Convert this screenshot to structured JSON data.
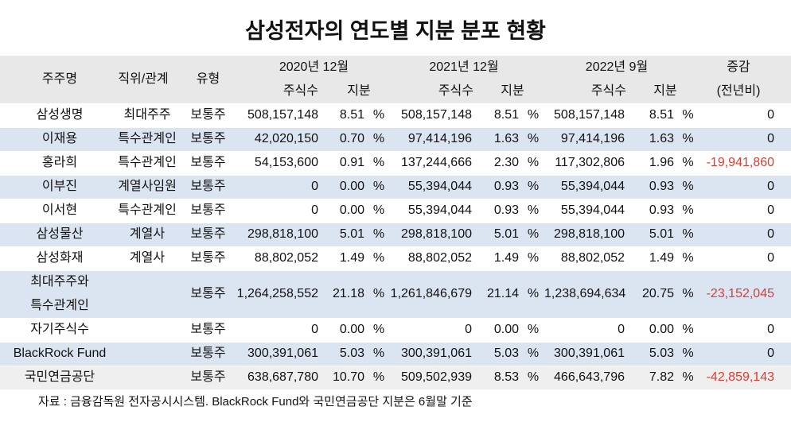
{
  "chart_data": {
    "type": "table",
    "title": "삼성전자의 연도별 지분 분포 현황",
    "columns": {
      "shareholder": "주주명",
      "relation": "직위/관계",
      "share_type": "유형",
      "periods": [
        {
          "label": "2020년 12월",
          "shares_label": "주식수",
          "stake_label": "지분"
        },
        {
          "label": "2021년 12월",
          "shares_label": "주식수",
          "stake_label": "지분"
        },
        {
          "label": "2022년 9월",
          "shares_label": "주식수",
          "stake_label": "지분"
        }
      ],
      "change": "증감",
      "change_sub": "(전년비)"
    },
    "stake_unit": "%",
    "rows": [
      {
        "name": "삼성생명",
        "relation": "최대주주",
        "share_type": "보통주",
        "shares_2020": "508,157,148",
        "stake_2020": "8.51",
        "shares_2021": "508,157,148",
        "stake_2021": "8.51",
        "shares_2022": "508,157,148",
        "stake_2022": "8.51",
        "change": "0"
      },
      {
        "name": "이재용",
        "relation": "특수관계인",
        "share_type": "보통주",
        "shares_2020": "42,020,150",
        "stake_2020": "0.70",
        "shares_2021": "97,414,196",
        "stake_2021": "1.63",
        "shares_2022": "97,414,196",
        "stake_2022": "1.63",
        "change": "0"
      },
      {
        "name": "홍라희",
        "relation": "특수관계인",
        "share_type": "보통주",
        "shares_2020": "54,153,600",
        "stake_2020": "0.91",
        "shares_2021": "137,244,666",
        "stake_2021": "2.30",
        "shares_2022": "117,302,806",
        "stake_2022": "1.96",
        "change": "-19,941,860"
      },
      {
        "name": "이부진",
        "relation": "계열사임원",
        "share_type": "보통주",
        "shares_2020": "0",
        "stake_2020": "0.00",
        "shares_2021": "55,394,044",
        "stake_2021": "0.93",
        "shares_2022": "55,394,044",
        "stake_2022": "0.93",
        "change": "0"
      },
      {
        "name": "이서현",
        "relation": "특수관계인",
        "share_type": "보통주",
        "shares_2020": "0",
        "stake_2020": "0.00",
        "shares_2021": "55,394,044",
        "stake_2021": "0.93",
        "shares_2022": "55,394,044",
        "stake_2022": "0.93",
        "change": "0"
      },
      {
        "name": "삼성물산",
        "relation": "계열사",
        "share_type": "보통주",
        "shares_2020": "298,818,100",
        "stake_2020": "5.01",
        "shares_2021": "298,818,100",
        "stake_2021": "5.01",
        "shares_2022": "298,818,100",
        "stake_2022": "5.01",
        "change": "0"
      },
      {
        "name": "삼성화재",
        "relation": "계열사",
        "share_type": "보통주",
        "shares_2020": "88,802,052",
        "stake_2020": "1.49",
        "shares_2021": "88,802,052",
        "stake_2021": "1.49",
        "shares_2022": "88,802,052",
        "stake_2022": "1.49",
        "change": "0"
      },
      {
        "name": "최대주주와 특수관계인",
        "share_type": "보통주",
        "shares_2020": "1,264,258,552",
        "stake_2020": "21.18",
        "shares_2021": "1,261,846,679",
        "stake_2021": "21.14",
        "shares_2022": "1,238,694,634",
        "stake_2022": "20.75",
        "change": "-23,152,045"
      },
      {
        "name": "자기주식수",
        "share_type": "보통주",
        "shares_2020": "0",
        "stake_2020": "0.00",
        "shares_2021": "0",
        "stake_2021": "0.00",
        "shares_2022": "0",
        "stake_2022": "0.00",
        "change": "0"
      },
      {
        "name": "BlackRock Fund",
        "share_type": "보통주",
        "shares_2020": "300,391,061",
        "stake_2020": "5.03",
        "shares_2021": "300,391,061",
        "stake_2021": "5.03",
        "shares_2022": "300,391,061",
        "stake_2022": "5.03",
        "change": "0"
      },
      {
        "name": "국민연금공단",
        "share_type": "보통주",
        "shares_2020": "638,687,780",
        "stake_2020": "10.70",
        "shares_2021": "509,502,939",
        "stake_2021": "8.53",
        "shares_2022": "466,643,796",
        "stake_2022": "7.82",
        "change": "-42,859,143"
      }
    ],
    "note": "자료 : 금융감독원 전자공시시스템. BlackRock Fund와 국민연금공단 지분은 6월말 기준"
  },
  "colors": {
    "header_bg": "#e8e8e8",
    "band_bg": "#dbe5f1",
    "last_row_bg": "#efefef",
    "negative": "#e03b2f"
  }
}
